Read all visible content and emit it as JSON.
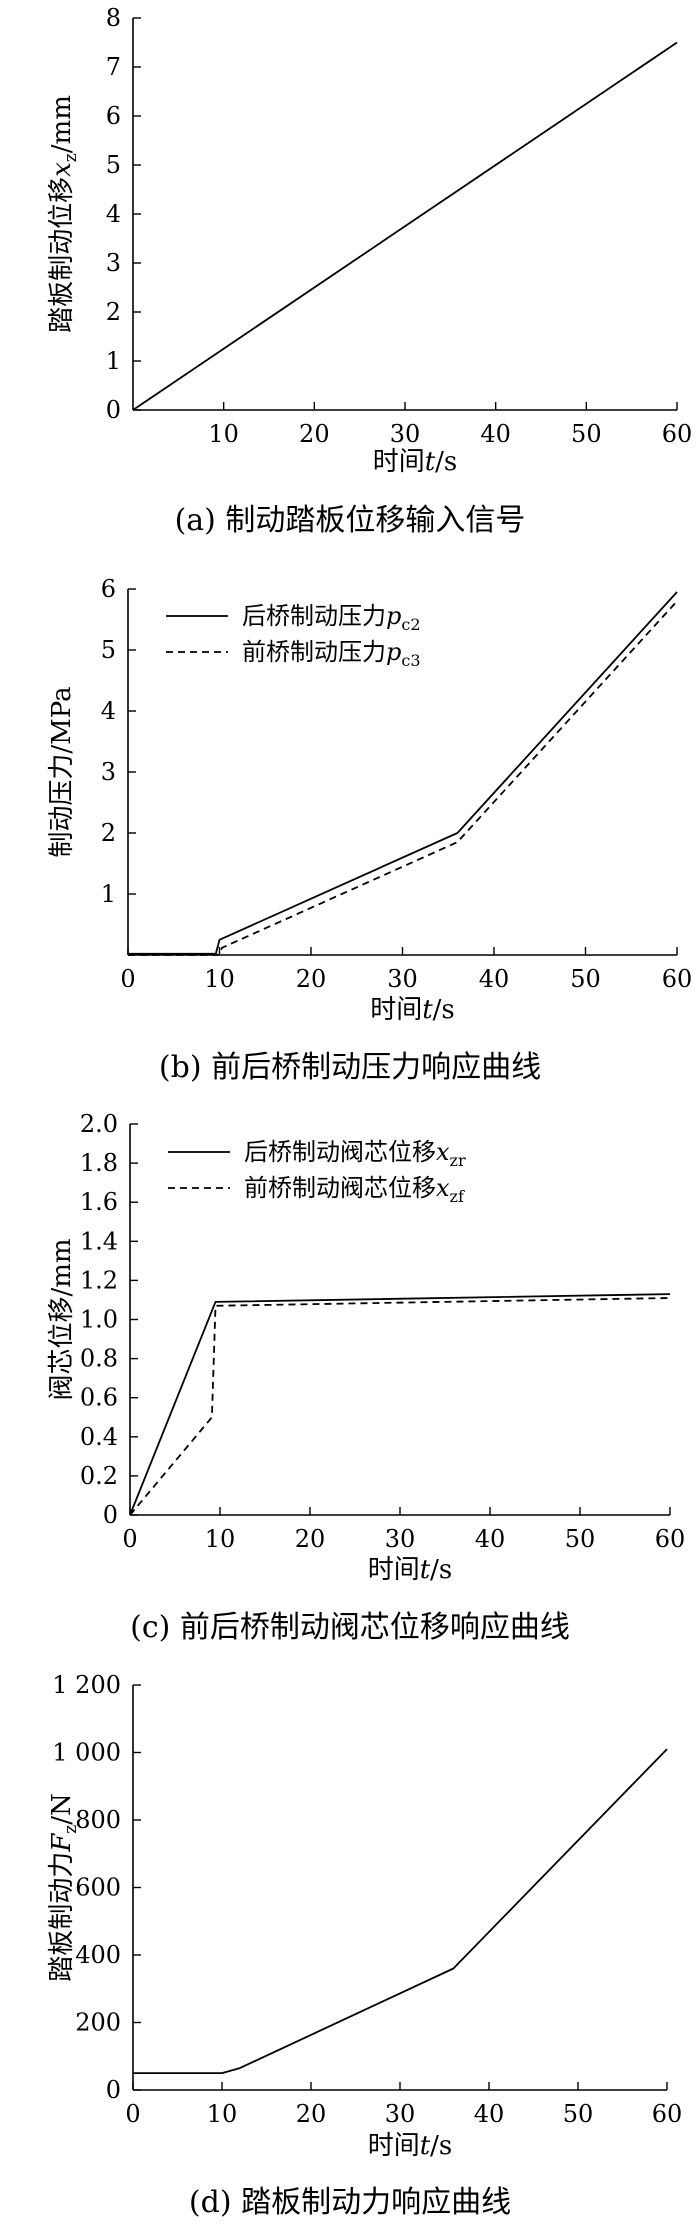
{
  "chart_data": [
    {
      "type": "line",
      "caption": "(a) 制动踏板位移输入信号",
      "xlabel": {
        "main": "时间",
        "var": "t",
        "sub": "",
        "unit": "/s"
      },
      "ylabel": {
        "main": "踏板制动位移",
        "var": "x",
        "sub": "z",
        "unit": "/mm"
      },
      "xlim": [
        0,
        60
      ],
      "ylim": [
        0,
        8
      ],
      "xticks": [
        10,
        20,
        30,
        40,
        50,
        60
      ],
      "yticks": [
        0,
        1,
        2,
        3,
        4,
        5,
        6,
        7,
        8
      ],
      "series": [
        {
          "style": "solid",
          "points": [
            [
              0,
              0
            ],
            [
              60,
              7.5
            ]
          ]
        }
      ]
    },
    {
      "type": "line",
      "caption": "(b) 前后桥制动压力响应曲线",
      "xlabel": {
        "main": "时间",
        "var": "t",
        "sub": "",
        "unit": "/s"
      },
      "ylabel": {
        "main": "制动压力",
        "var": "",
        "sub": "",
        "unit": "/MPa"
      },
      "xlim": [
        0,
        60
      ],
      "ylim": [
        0,
        6
      ],
      "xticks": [
        0,
        10,
        20,
        30,
        40,
        50,
        60
      ],
      "yticks": [
        1,
        2,
        3,
        4,
        5,
        6
      ],
      "legend_position": "top-left",
      "series": [
        {
          "name": "后桥制动压力",
          "name_var": "p",
          "name_sub": "c2",
          "style": "solid",
          "points": [
            [
              0,
              0.02
            ],
            [
              9.6,
              0.02
            ],
            [
              10,
              0.25
            ],
            [
              36,
              2.0
            ],
            [
              60,
              5.95
            ]
          ]
        },
        {
          "name": "前桥制动压力",
          "name_var": "p",
          "name_sub": "c3",
          "style": "dashed",
          "points": [
            [
              0,
              0
            ],
            [
              9.8,
              0
            ],
            [
              10.3,
              0.12
            ],
            [
              36,
              1.85
            ],
            [
              60,
              5.8
            ]
          ]
        }
      ]
    },
    {
      "type": "line",
      "caption": "(c) 前后桥制动阀芯位移响应曲线",
      "xlabel": {
        "main": "时间",
        "var": "t",
        "sub": "",
        "unit": "/s"
      },
      "ylabel": {
        "main": "阀芯位移",
        "var": "",
        "sub": "",
        "unit": "/mm"
      },
      "xlim": [
        0,
        60
      ],
      "ylim": [
        0,
        2.0
      ],
      "xticks": [
        0,
        10,
        20,
        30,
        40,
        50,
        60
      ],
      "yticks": [
        "0",
        "0.2",
        "0.4",
        "0.6",
        "0.8",
        "1.0",
        "1.2",
        "1.4",
        "1.6",
        "1.8",
        "2.0"
      ],
      "legend_position": "top-left",
      "series": [
        {
          "name": "后桥制动阀芯位移",
          "name_var": "x",
          "name_sub": "zr",
          "style": "solid",
          "points": [
            [
              0,
              0
            ],
            [
              9.5,
              1.09
            ],
            [
              60,
              1.13
            ]
          ]
        },
        {
          "name": "前桥制动阀芯位移",
          "name_var": "x",
          "name_sub": "zf",
          "style": "dashed",
          "points": [
            [
              0,
              0
            ],
            [
              9.1,
              0.5
            ],
            [
              9.5,
              1.07
            ],
            [
              60,
              1.11
            ]
          ]
        }
      ]
    },
    {
      "type": "line",
      "caption": "(d) 踏板制动力响应曲线",
      "xlabel": {
        "main": "时间",
        "var": "t",
        "sub": "",
        "unit": "/s"
      },
      "ylabel": {
        "main": "踏板制动力",
        "var": "F",
        "sub": "z",
        "unit": "/N"
      },
      "xlim": [
        0,
        60
      ],
      "ylim": [
        0,
        1200
      ],
      "xticks": [
        0,
        10,
        20,
        30,
        40,
        50,
        60
      ],
      "yticks": [
        "0",
        "200",
        "400",
        "600",
        "800",
        "1 000",
        "1 200"
      ],
      "series": [
        {
          "style": "solid",
          "points": [
            [
              0,
              50
            ],
            [
              10,
              50
            ],
            [
              12,
              65
            ],
            [
              36,
              360
            ],
            [
              60,
              1010
            ]
          ]
        }
      ]
    }
  ]
}
